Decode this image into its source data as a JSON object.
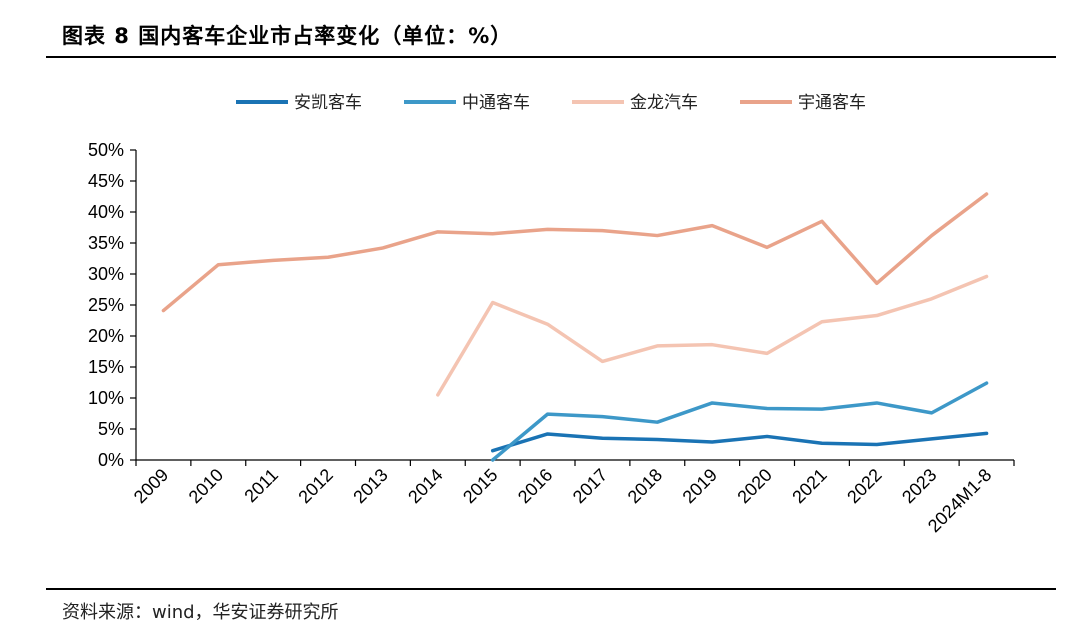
{
  "header": {
    "title": "图表 8 国内客车企业市占率变化（单位：%）"
  },
  "footer": {
    "source": "资料来源：wind，华安证券研究所"
  },
  "chart_data": {
    "type": "line",
    "title": "图表 8 国内客车企业市占率变化（单位：%）",
    "categories": [
      "2009",
      "2010",
      "2011",
      "2012",
      "2013",
      "2014",
      "2015",
      "2016",
      "2017",
      "2018",
      "2019",
      "2020",
      "2021",
      "2022",
      "2023",
      "2024M1-8"
    ],
    "y_ticks": [
      "0%",
      "5%",
      "10%",
      "15%",
      "20%",
      "25%",
      "30%",
      "35%",
      "40%",
      "45%",
      "50%"
    ],
    "ylim": [
      0,
      50
    ],
    "grid": false,
    "legend_position": "top",
    "series": [
      {
        "name": "安凯客车",
        "color": "#1a73b4",
        "values": [
          null,
          null,
          null,
          null,
          null,
          null,
          1.5,
          4.2,
          3.5,
          3.3,
          2.9,
          3.8,
          2.7,
          2.5,
          3.4,
          4.3
        ],
        "stroke_width": 3.5
      },
      {
        "name": "中通客车",
        "color": "#3d98c8",
        "values": [
          null,
          null,
          null,
          null,
          null,
          null,
          0.0,
          7.4,
          7.0,
          6.1,
          9.2,
          8.3,
          8.2,
          9.2,
          7.6,
          12.4
        ],
        "stroke_width": 3.5
      },
      {
        "name": "金龙汽车",
        "color": "#f4c4b2",
        "values": [
          null,
          null,
          null,
          null,
          null,
          10.5,
          25.4,
          21.9,
          15.9,
          18.4,
          18.6,
          17.2,
          22.3,
          23.3,
          26.0,
          29.6
        ],
        "stroke_width": 3.5
      },
      {
        "name": "宇通客车",
        "color": "#e9a38a",
        "values": [
          24.1,
          31.5,
          32.2,
          32.7,
          34.2,
          36.8,
          36.5,
          37.2,
          37.0,
          36.2,
          37.8,
          34.3,
          38.5,
          28.5,
          36.2,
          42.9
        ],
        "stroke_width": 3.5
      }
    ]
  }
}
